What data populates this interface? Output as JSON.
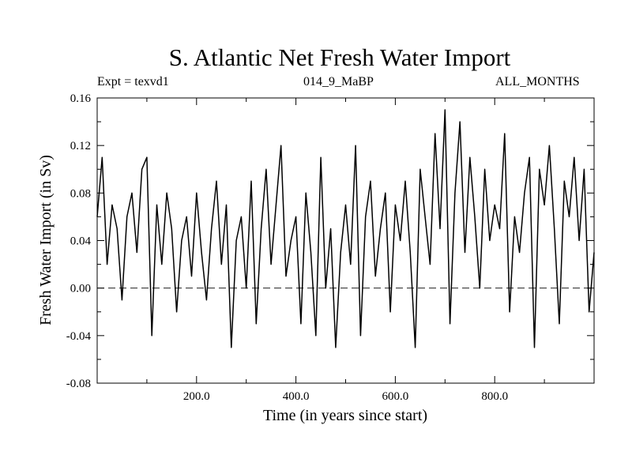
{
  "chart_data": {
    "type": "line",
    "title": "S. Atlantic Net Fresh Water Import",
    "subtitle_left": "Expt = texvd1",
    "subtitle_center": "014_9_MaBP",
    "subtitle_right": "ALL_MONTHS",
    "xlabel": "Time (in years since start)",
    "ylabel": "Fresh Water Import (in Sv)",
    "xlim": [
      0,
      1000
    ],
    "ylim": [
      -0.08,
      0.16
    ],
    "xticks": [
      200,
      400,
      600,
      800
    ],
    "xtick_labels": [
      "200.0",
      "400.0",
      "600.0",
      "800.0"
    ],
    "yticks": [
      -0.08,
      -0.04,
      0.0,
      0.04,
      0.08,
      0.12,
      0.16
    ],
    "ytick_labels": [
      "-0.08",
      "-0.04",
      "0.00",
      "0.04",
      "0.08",
      "0.12",
      "0.16"
    ],
    "reference_line": {
      "y": 0.0,
      "style": "dashed"
    },
    "series": [
      {
        "name": "Net fresh water import",
        "color": "#000000",
        "x": [
          0,
          10,
          20,
          30,
          40,
          50,
          60,
          70,
          80,
          90,
          100,
          110,
          120,
          130,
          140,
          150,
          160,
          170,
          180,
          190,
          200,
          210,
          220,
          230,
          240,
          250,
          260,
          270,
          280,
          290,
          300,
          310,
          320,
          330,
          340,
          350,
          360,
          370,
          380,
          390,
          400,
          410,
          420,
          430,
          440,
          450,
          460,
          470,
          480,
          490,
          500,
          510,
          520,
          530,
          540,
          550,
          560,
          570,
          580,
          590,
          600,
          610,
          620,
          630,
          640,
          650,
          660,
          670,
          680,
          690,
          700,
          710,
          720,
          730,
          740,
          750,
          760,
          770,
          780,
          790,
          800,
          810,
          820,
          830,
          840,
          850,
          860,
          870,
          880,
          890,
          900,
          910,
          920,
          930,
          940,
          950,
          960,
          970,
          980,
          990,
          1000
        ],
        "values": [
          0.06,
          0.11,
          0.02,
          0.07,
          0.05,
          -0.01,
          0.06,
          0.08,
          0.03,
          0.1,
          0.11,
          -0.04,
          0.07,
          0.02,
          0.08,
          0.05,
          -0.02,
          0.04,
          0.06,
          0.01,
          0.08,
          0.03,
          -0.01,
          0.05,
          0.09,
          0.02,
          0.07,
          -0.05,
          0.04,
          0.06,
          0.0,
          0.09,
          -0.03,
          0.05,
          0.1,
          0.02,
          0.07,
          0.12,
          0.01,
          0.04,
          0.06,
          -0.03,
          0.08,
          0.03,
          -0.04,
          0.11,
          0.0,
          0.05,
          -0.05,
          0.03,
          0.07,
          0.02,
          0.12,
          -0.04,
          0.06,
          0.09,
          0.01,
          0.05,
          0.08,
          -0.02,
          0.07,
          0.04,
          0.09,
          0.03,
          -0.05,
          0.1,
          0.06,
          0.02,
          0.13,
          0.05,
          0.15,
          -0.03,
          0.08,
          0.14,
          0.03,
          0.11,
          0.06,
          0.0,
          0.1,
          0.04,
          0.07,
          0.05,
          0.13,
          -0.02,
          0.06,
          0.03,
          0.08,
          0.11,
          -0.05,
          0.1,
          0.07,
          0.12,
          0.05,
          -0.03,
          0.09,
          0.06,
          0.11,
          0.04,
          0.1,
          -0.02,
          0.03
        ]
      }
    ]
  }
}
